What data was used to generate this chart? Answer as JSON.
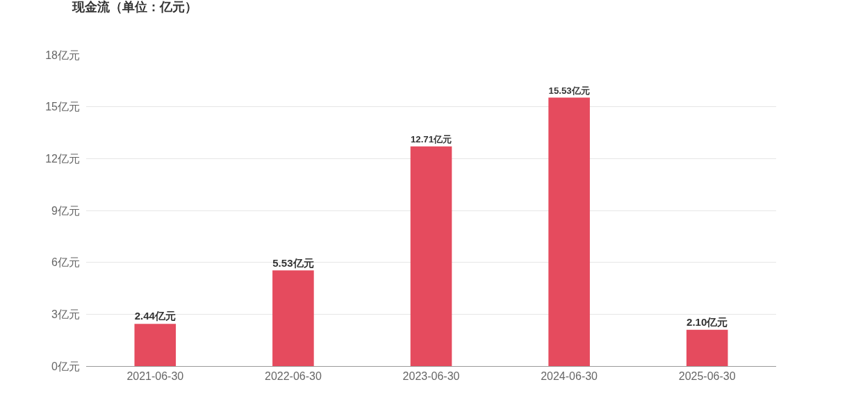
{
  "chart_data": {
    "type": "bar",
    "title": "现金流（单位：亿元）",
    "categories": [
      "2021-06-30",
      "2022-06-30",
      "2023-06-30",
      "2024-06-30",
      "2025-06-30"
    ],
    "values": [
      2.44,
      5.53,
      12.71,
      15.53,
      2.1
    ],
    "value_labels": [
      "2.44亿元",
      "5.53亿元",
      "12.71亿元",
      "15.53亿元",
      "2.10亿元"
    ],
    "color": "#e54b5e",
    "ylim": [
      0,
      18
    ],
    "yticks": [
      {
        "value": 0,
        "label": "0亿元"
      },
      {
        "value": 3,
        "label": "3亿元"
      },
      {
        "value": 6,
        "label": "6亿元"
      },
      {
        "value": 9,
        "label": "9亿元"
      },
      {
        "value": 12,
        "label": "12亿元"
      },
      {
        "value": 15,
        "label": "15亿元"
      },
      {
        "value": 18,
        "label": "18亿元"
      }
    ],
    "grid": "y"
  }
}
